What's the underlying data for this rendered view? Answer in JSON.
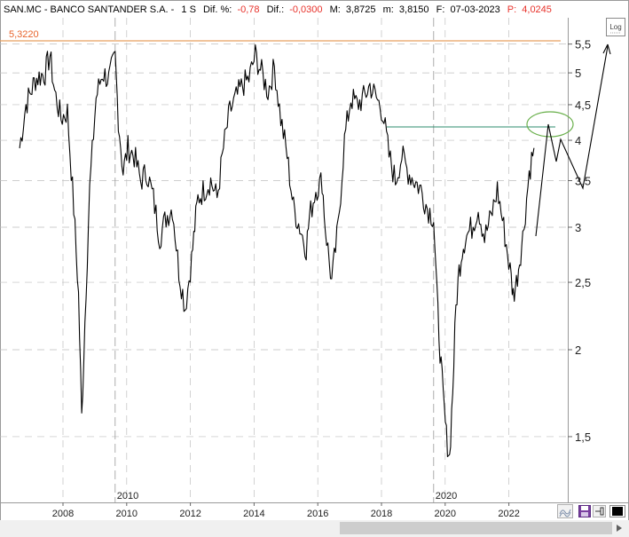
{
  "header": {
    "symbol": "SAN.MC - BANCO SANTANDER S.A. -",
    "interval": "1 S",
    "dif_pct_label": "Dif. %:",
    "dif_pct_value": "-0,78",
    "dif_label": "Dif.:",
    "dif_value": "-0,0300",
    "max_label": "M:",
    "max_value": "3,8725",
    "min_label": "m:",
    "min_value": "3,8150",
    "date_label": "F:",
    "date_value": "07-03-2023",
    "price_label": "P:",
    "price_value": "4,0245"
  },
  "log_button_label": "Log",
  "colors": {
    "price_line": "#000000",
    "resistance_line": "#e8a060",
    "resistance_label": "#e8632b",
    "trend_line": "#2e8b6e",
    "ellipse": "#6ab04c",
    "header_red": "#e8322b",
    "grid": "#bfbfbf"
  },
  "chart_data": {
    "type": "line",
    "title": "SAN.MC - BANCO SANTANDER S.A.",
    "scale": "log",
    "ylim": [
      1.3,
      5.6
    ],
    "xlim": [
      2007.0,
      2024.6
    ],
    "y_ticks": [
      1.5,
      2,
      2.5,
      3,
      3.5,
      4,
      4.5,
      5,
      5.5
    ],
    "y_tick_labels": [
      "1,5",
      "2",
      "2,5",
      "3",
      "3,5",
      "4",
      "4,5",
      "5",
      "5,5"
    ],
    "x_ticks": [
      2008,
      2010,
      2012,
      2014,
      2016,
      2018,
      2020,
      2022
    ],
    "x_tick_labels": [
      "2008",
      "2010",
      "2012",
      "2014",
      "2016",
      "2018",
      "2020",
      "2022"
    ],
    "year_dividers": [
      2010,
      2020
    ],
    "year_divider_labels": [
      "2010",
      "2020"
    ],
    "grid": true,
    "series": [
      {
        "x": [
          2007.0,
          2007.2,
          2007.5,
          2007.8,
          2007.95,
          2008.1,
          2008.3,
          2008.5,
          2008.7,
          2008.85,
          2008.95,
          2009.05,
          2009.2,
          2009.4,
          2009.6,
          2009.8,
          2010.0,
          2010.1,
          2010.25,
          2010.4,
          2010.6,
          2010.8,
          2011.0,
          2011.2,
          2011.4,
          2011.6,
          2011.8,
          2012.0,
          2012.2,
          2012.4,
          2012.5,
          2012.6,
          2012.8,
          2013.0,
          2013.2,
          2013.4,
          2013.6,
          2013.8,
          2014.0,
          2014.2,
          2014.4,
          2014.6,
          2014.8,
          2015.0,
          2015.2,
          2015.4,
          2015.6,
          2015.8,
          2016.0,
          2016.1,
          2016.3,
          2016.5,
          2016.6,
          2016.8,
          2017.0,
          2017.2,
          2017.4,
          2017.6,
          2017.8,
          2018.0,
          2018.2,
          2018.4,
          2018.6,
          2018.8,
          2019.0,
          2019.2,
          2019.4,
          2019.6,
          2019.8,
          2020.0,
          2020.1,
          2020.2,
          2020.3,
          2020.4,
          2020.5,
          2020.6,
          2020.7,
          2020.8,
          2020.9,
          2021.0,
          2021.2,
          2021.4,
          2021.6,
          2021.8,
          2022.0,
          2022.2,
          2022.4,
          2022.5,
          2022.6,
          2022.7,
          2022.8,
          2023.0,
          2023.15
        ],
        "values": [
          3.9,
          4.5,
          4.9,
          5.0,
          5.3,
          4.7,
          4.3,
          4.4,
          3.2,
          2.4,
          1.6,
          2.2,
          3.4,
          4.6,
          5.0,
          4.9,
          5.25,
          4.3,
          3.6,
          3.9,
          3.8,
          3.5,
          3.6,
          3.3,
          2.9,
          3.1,
          3.2,
          2.6,
          2.3,
          2.7,
          3.0,
          3.3,
          3.4,
          3.5,
          3.3,
          3.9,
          4.4,
          4.6,
          4.8,
          4.9,
          5.3,
          5.0,
          4.7,
          5.1,
          4.3,
          3.8,
          3.2,
          3.0,
          2.8,
          3.1,
          3.4,
          3.5,
          3.0,
          2.5,
          3.0,
          4.0,
          4.6,
          4.5,
          4.6,
          4.8,
          4.6,
          4.4,
          3.8,
          3.5,
          3.8,
          3.6,
          3.5,
          3.4,
          3.2,
          3.1,
          2.4,
          2.0,
          1.7,
          1.5,
          1.4,
          1.75,
          2.3,
          2.6,
          2.8,
          2.9,
          3.0,
          3.2,
          2.9,
          3.1,
          3.4,
          3.0,
          2.6,
          2.4,
          2.5,
          2.7,
          2.9,
          3.6,
          3.9
        ]
      }
    ],
    "resistance_level": 5.322,
    "resistance_label": "5,3220",
    "trend_line": {
      "x": [
        2018.4,
        2023.8
      ],
      "values": [
        4.05,
        4.05
      ]
    },
    "projection": {
      "x": [
        2023.0,
        2023.6,
        2023.8,
        2024.0,
        2024.35,
        2024.9
      ],
      "values": [
        2.85,
        4.02,
        3.65,
        3.95,
        3.3,
        5.3
      ]
    },
    "ellipse_center": [
      2023.65,
      4.05
    ]
  }
}
